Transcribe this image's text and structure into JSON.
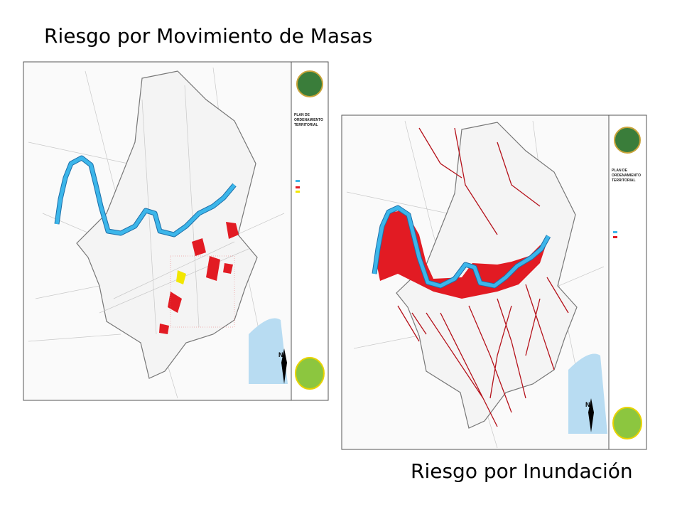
{
  "title_top": "Riesgo por Movimiento de Masas",
  "title_bottom": "Riesgo por Inundación",
  "maps": [
    {
      "panel_title": [
        "PLAN DE",
        "ORDENAMIENTO",
        "TERRITORIAL"
      ],
      "north": "N"
    },
    {
      "panel_title": [
        "PLAN DE",
        "ORDENAMIENTO",
        "TERRITORIAL"
      ],
      "north": "N"
    }
  ]
}
